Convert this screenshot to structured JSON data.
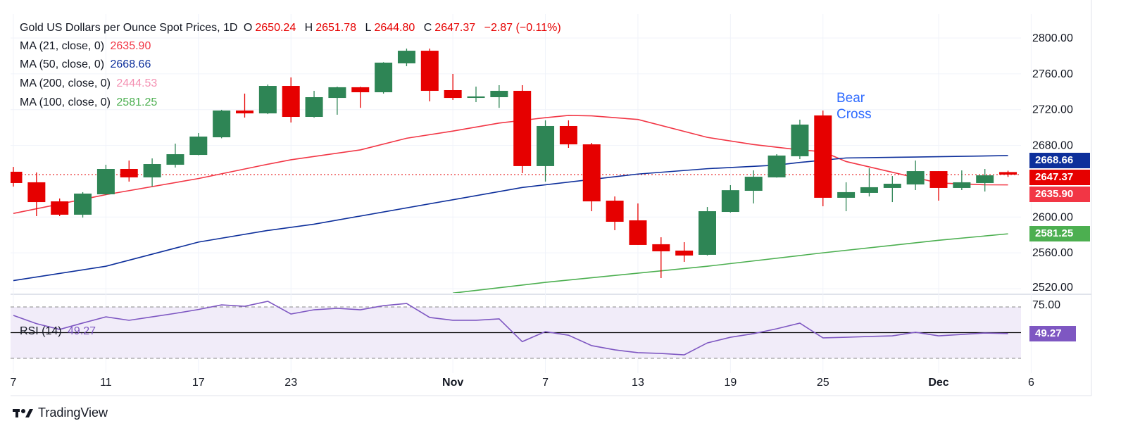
{
  "header": {
    "symbol": "Gold US Dollars per Ounce Spot Prices, 1D",
    "o_label": "O",
    "o": "2650.24",
    "h_label": "H",
    "h": "2651.78",
    "l_label": "L",
    "l": "2644.80",
    "c_label": "C",
    "c": "2647.37",
    "change": "−2.87 (−0.11%)"
  },
  "indicators": [
    {
      "label": "MA (21, close, 0)",
      "value": "2635.90",
      "color": "#f23645"
    },
    {
      "label": "MA (50, close, 0)",
      "value": "2668.66",
      "color": "#0d2f9b"
    },
    {
      "label": "MA (200, close, 0)",
      "value": "2444.53",
      "color": "#f48fb1"
    },
    {
      "label": "MA (100, close, 0)",
      "value": "2581.25",
      "color": "#4caf50"
    }
  ],
  "annotation": {
    "line1": "Bear",
    "line2": "Cross"
  },
  "price_labels": {
    "ma50": "2668.66",
    "last": "2647.37",
    "ma21": "2635.90",
    "ma100": "2581.25",
    "rsi": "49.27"
  },
  "rsi_legend": {
    "label": "RSI (14)",
    "value": "49.27"
  },
  "branding": "TradingView",
  "chart_data": {
    "type": "candlestick",
    "title": "Gold US Dollars per Ounce Spot Prices, 1D",
    "ylim": [
      2505,
      2815
    ],
    "yticks": [
      "2800.00",
      "2760.00",
      "2720.00",
      "2680.00",
      "2600.00",
      "2560.00",
      "2520.00"
    ],
    "ytick_values": [
      2800,
      2760,
      2720,
      2680,
      2600,
      2560,
      2520
    ],
    "xticks": [
      {
        "i": 0,
        "label": "7"
      },
      {
        "i": 4,
        "label": "11"
      },
      {
        "i": 8,
        "label": "17"
      },
      {
        "i": 12,
        "label": "23"
      },
      {
        "i": 19,
        "label": "Nov"
      },
      {
        "i": 23,
        "label": "7"
      },
      {
        "i": 27,
        "label": "13"
      },
      {
        "i": 31,
        "label": "19"
      },
      {
        "i": 35,
        "label": "25"
      },
      {
        "i": 40,
        "label": "Dec"
      },
      {
        "i": 44,
        "label": "6"
      }
    ],
    "candles": [
      [
        2650.6,
        2656,
        2634,
        2638
      ],
      [
        2638.8,
        2649.8,
        2601,
        2616.7
      ],
      [
        2617.5,
        2620.7,
        2601,
        2602.6
      ],
      [
        2602.6,
        2627.8,
        2599.4,
        2626.2
      ],
      [
        2625.4,
        2658.4,
        2624.6,
        2653.7
      ],
      [
        2653.7,
        2663.1,
        2639.6,
        2644.3
      ],
      [
        2644.3,
        2665.5,
        2634,
        2659.2
      ],
      [
        2658.4,
        2682,
        2655.3,
        2670.2
      ],
      [
        2669.4,
        2693.8,
        2669,
        2689.9
      ],
      [
        2689.1,
        2719.8,
        2688,
        2719
      ],
      [
        2719,
        2737.9,
        2711.1,
        2715.8
      ],
      [
        2715.8,
        2748,
        2715,
        2746.5
      ],
      [
        2746.5,
        2756,
        2705.6,
        2711.9
      ],
      [
        2711.9,
        2741,
        2711,
        2733.9
      ],
      [
        2733.1,
        2745.7,
        2714.3,
        2745
      ],
      [
        2745,
        2745.5,
        2722,
        2739.4
      ],
      [
        2739.4,
        2773,
        2737.9,
        2772.5
      ],
      [
        2771.7,
        2788.2,
        2768.5,
        2785.8
      ],
      [
        2785.8,
        2788.2,
        2729.2,
        2741
      ],
      [
        2741.8,
        2759.9,
        2730.8,
        2733.1
      ],
      [
        2733.9,
        2745.7,
        2728.4,
        2734.7
      ],
      [
        2733.9,
        2747.3,
        2722,
        2741
      ],
      [
        2741,
        2747.3,
        2649,
        2656.9
      ],
      [
        2656.9,
        2708,
        2639.6,
        2701.7
      ],
      [
        2701.7,
        2708,
        2677.3,
        2681.2
      ],
      [
        2681.2,
        2682.8,
        2606.5,
        2617.5
      ],
      [
        2618.3,
        2623,
        2585.3,
        2594.7
      ],
      [
        2596.3,
        2615.2,
        2568.8,
        2568.8
      ],
      [
        2569.6,
        2577.4,
        2531.8,
        2561.7
      ],
      [
        2562.5,
        2571.9,
        2549.9,
        2557
      ],
      [
        2557.8,
        2611.2,
        2557,
        2606.5
      ],
      [
        2605.7,
        2635.6,
        2605,
        2630
      ],
      [
        2629.3,
        2652.1,
        2615.2,
        2645
      ],
      [
        2644.3,
        2670.2,
        2644,
        2668.7
      ],
      [
        2667.9,
        2708.8,
        2664.7,
        2703.3
      ],
      [
        2713.5,
        2719,
        2612,
        2621.5
      ],
      [
        2621.5,
        2638.8,
        2606.5,
        2627.8
      ],
      [
        2627,
        2654.5,
        2623,
        2633.3
      ],
      [
        2632.5,
        2645.8,
        2616.7,
        2637.2
      ],
      [
        2636.4,
        2663.1,
        2630.1,
        2651.3
      ],
      [
        2651.3,
        2651.3,
        2618.3,
        2632.5
      ],
      [
        2632.5,
        2652.1,
        2630.1,
        2638.8
      ],
      [
        2638,
        2653.7,
        2628.5,
        2646.6
      ],
      [
        2650.24,
        2651.78,
        2644.8,
        2647.37
      ]
    ],
    "candle_fields": [
      "open",
      "high",
      "low",
      "close"
    ],
    "series": [
      {
        "name": "MA 21",
        "color": "#f23645",
        "points": [
          [
            0,
            2604
          ],
          [
            4,
            2625
          ],
          [
            8,
            2643
          ],
          [
            11,
            2659
          ],
          [
            12,
            2664
          ],
          [
            15,
            2675
          ],
          [
            17,
            2688
          ],
          [
            19,
            2696
          ],
          [
            21,
            2705
          ],
          [
            23,
            2711
          ],
          [
            24,
            2713.5
          ],
          [
            25,
            2713
          ],
          [
            27,
            2709
          ],
          [
            30,
            2689
          ],
          [
            32,
            2681
          ],
          [
            34,
            2675
          ],
          [
            35,
            2673
          ],
          [
            36,
            2662
          ],
          [
            38,
            2650
          ],
          [
            40,
            2638
          ],
          [
            42,
            2636
          ],
          [
            43,
            2635.9
          ]
        ]
      },
      {
        "name": "MA 50",
        "color": "#0d2f9b",
        "points": [
          [
            0,
            2529
          ],
          [
            4,
            2545
          ],
          [
            8,
            2572
          ],
          [
            11,
            2585
          ],
          [
            13,
            2592
          ],
          [
            22,
            2633
          ],
          [
            27,
            2648
          ],
          [
            30,
            2654
          ],
          [
            33,
            2658
          ],
          [
            34,
            2661
          ],
          [
            36,
            2666
          ],
          [
            39,
            2667
          ],
          [
            43,
            2668.66
          ]
        ]
      },
      {
        "name": "MA 100",
        "color": "#4caf50",
        "points": [
          [
            19,
            2515
          ],
          [
            23,
            2527
          ],
          [
            30,
            2545
          ],
          [
            35,
            2560
          ],
          [
            40,
            2574
          ],
          [
            43,
            2581.25
          ]
        ]
      }
    ],
    "rsi": {
      "name": "RSI (14)",
      "ylim": [
        25,
        78
      ],
      "levels": [
        70,
        50,
        30
      ],
      "ytick": "75.00",
      "values": [
        63.4,
        57,
        52.5,
        57.5,
        62.3,
        59.6,
        62.3,
        65,
        68,
        71.6,
        70.5,
        74.4,
        64.5,
        67.8,
        68.9,
        67.8,
        71,
        72.7,
        61.8,
        59.6,
        59.6,
        60.7,
        43,
        50.8,
        48,
        39.9,
        36.6,
        34.4,
        33.8,
        32.7,
        42,
        46.4,
        49.2,
        53,
        57.4,
        45.9,
        46.4,
        47,
        47.5,
        50.3,
        47.5,
        48.6,
        49.7,
        49.27
      ]
    },
    "last_price": 2647.37
  }
}
